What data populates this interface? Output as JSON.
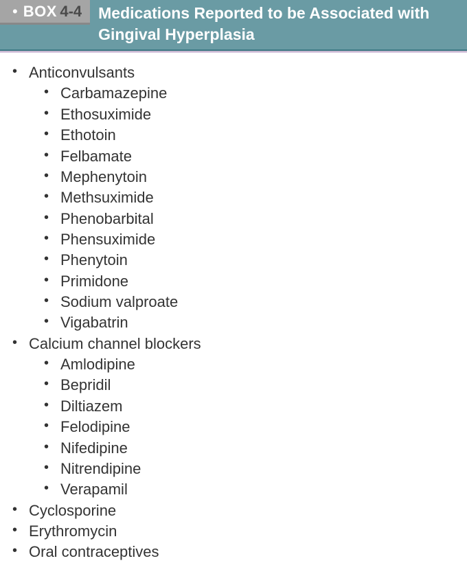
{
  "header": {
    "box_label": "BOX",
    "box_number": "4-4",
    "title": "Medications Reported to be Associated with Gingival Hyperplasia"
  },
  "categories": [
    {
      "name": "Anticonvulsants",
      "items": [
        "Carbamazepine",
        "Ethosuximide",
        "Ethotoin",
        "Felbamate",
        "Mephenytoin",
        "Methsuximide",
        "Phenobarbital",
        "Phensuximide",
        "Phenytoin",
        "Primidone",
        "Sodium valproate",
        "Vigabatrin"
      ]
    },
    {
      "name": "Calcium channel blockers",
      "items": [
        "Amlodipine",
        "Bepridil",
        "Diltiazem",
        "Felodipine",
        "Nifedipine",
        "Nitrendipine",
        "Verapamil"
      ]
    },
    {
      "name": "Cyclosporine",
      "items": []
    },
    {
      "name": "Erythromycin",
      "items": []
    },
    {
      "name": "Oral contraceptives",
      "items": []
    }
  ]
}
